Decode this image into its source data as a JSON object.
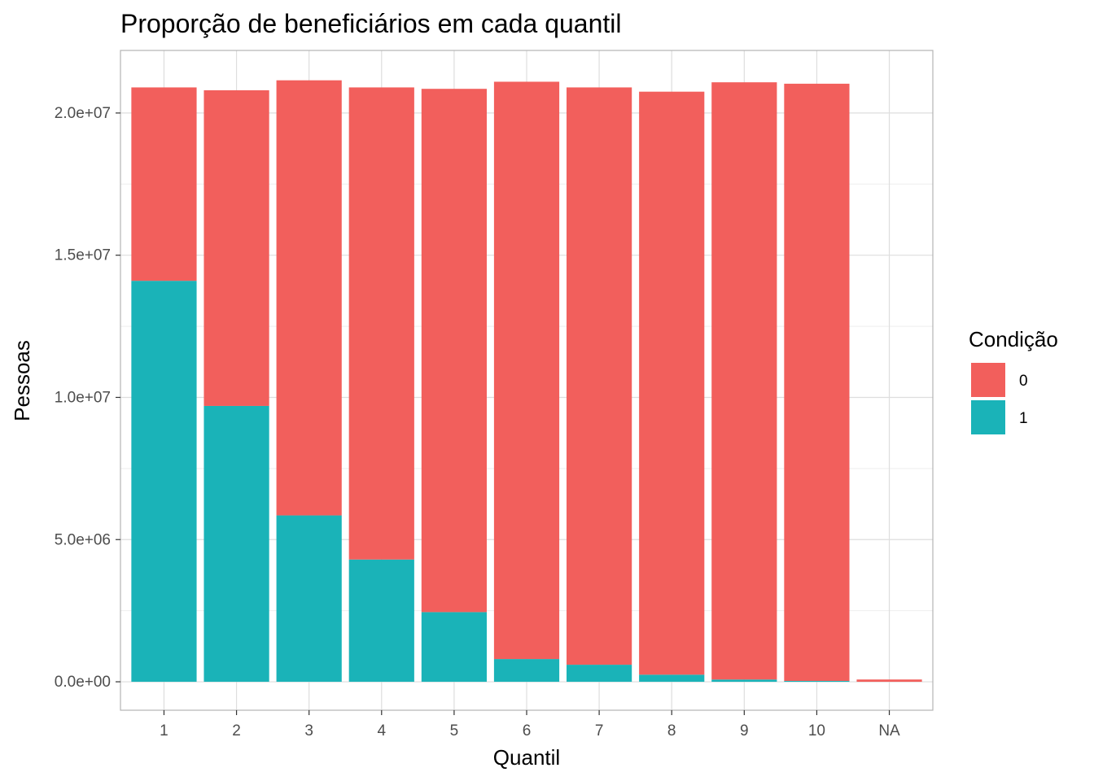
{
  "chart_data": {
    "type": "bar",
    "stacked": true,
    "title": "Proporção de beneficiários em cada quantil",
    "xlabel": "Quantil",
    "ylabel": "Pessoas",
    "categories": [
      "1",
      "2",
      "3",
      "4",
      "5",
      "6",
      "7",
      "8",
      "9",
      "10",
      "NA"
    ],
    "series": [
      {
        "name": "0",
        "color": "#F25F5C",
        "values": [
          6800000,
          11100000,
          15300000,
          16600000,
          18400000,
          20300000,
          20300000,
          20500000,
          21000000,
          21000000,
          80000
        ]
      },
      {
        "name": "1",
        "color": "#1AB3B8",
        "values": [
          14100000,
          9700000,
          5850000,
          4300000,
          2450000,
          800000,
          600000,
          250000,
          80000,
          30000,
          0
        ]
      }
    ],
    "ylim": [
      -1000000,
      22200000
    ],
    "yticks": [
      0,
      5000000,
      10000000,
      15000000,
      20000000
    ],
    "ytick_labels": [
      "0.0e+00",
      "5.0e+06",
      "1.0e+07",
      "1.5e+07",
      "2.0e+07"
    ],
    "legend": {
      "title": "Condição",
      "position": "right",
      "entries": [
        "0",
        "1"
      ]
    },
    "grid": true,
    "theme": "light",
    "colors": {
      "panel_border": "#B3B3B3",
      "grid_major": "#DEDEDE",
      "grid_minor": "#EEEEEE",
      "tick_text": "#4D4D4D"
    }
  }
}
